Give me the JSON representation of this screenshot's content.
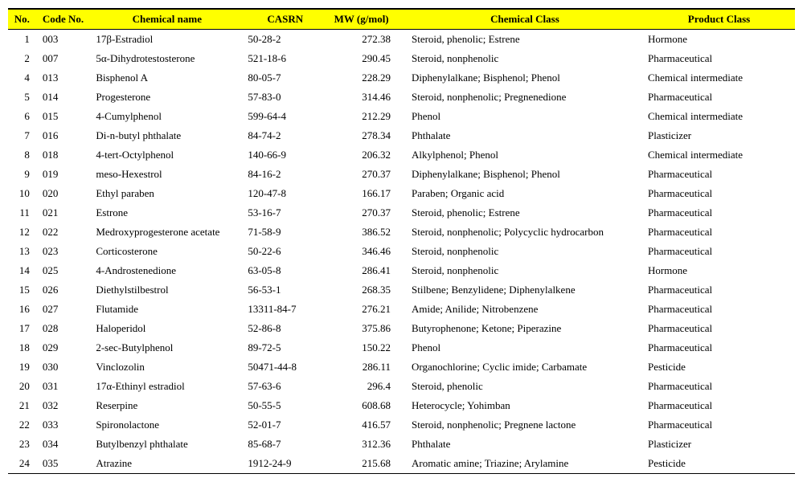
{
  "table": {
    "headers": {
      "no": "No.",
      "code": "Code No.",
      "name": "Chemical name",
      "casrn": "CASRN",
      "mw": "MW (g/mol)",
      "chemclass": "Chemical Class",
      "product": "Product Class"
    },
    "rows": [
      {
        "no": "1",
        "code": "003",
        "name": "17β-Estradiol",
        "casrn": "50-28-2",
        "mw": "272.38",
        "chemclass": "Steroid, phenolic; Estrene",
        "product": "Hormone"
      },
      {
        "no": "2",
        "code": "007",
        "name": "5α-Dihydrotestosterone",
        "casrn": "521-18-6",
        "mw": "290.45",
        "chemclass": "Steroid, nonphenolic",
        "product": "Pharmaceutical"
      },
      {
        "no": "4",
        "code": "013",
        "name": "Bisphenol A",
        "casrn": "80-05-7",
        "mw": "228.29",
        "chemclass": "Diphenylalkane; Bisphenol; Phenol",
        "product": "Chemical intermediate"
      },
      {
        "no": "5",
        "code": "014",
        "name": "Progesterone",
        "casrn": "57-83-0",
        "mw": "314.46",
        "chemclass": "Steroid, nonphenolic; Pregnenedione",
        "product": "Pharmaceutical"
      },
      {
        "no": "6",
        "code": "015",
        "name": "4-Cumylphenol",
        "casrn": "599-64-4",
        "mw": "212.29",
        "chemclass": "Phenol",
        "product": "Chemical intermediate"
      },
      {
        "no": "7",
        "code": "016",
        "name": "Di-n-butyl phthalate",
        "casrn": "84-74-2",
        "mw": "278.34",
        "chemclass": "Phthalate",
        "product": "Plasticizer"
      },
      {
        "no": "8",
        "code": "018",
        "name": "4-tert-Octylphenol",
        "casrn": "140-66-9",
        "mw": "206.32",
        "chemclass": "Alkylphenol; Phenol",
        "product": "Chemical intermediate"
      },
      {
        "no": "9",
        "code": "019",
        "name": "meso-Hexestrol",
        "casrn": "84-16-2",
        "mw": "270.37",
        "chemclass": "Diphenylalkane; Bisphenol; Phenol",
        "product": "Pharmaceutical"
      },
      {
        "no": "10",
        "code": "020",
        "name": "Ethyl paraben",
        "casrn": "120-47-8",
        "mw": "166.17",
        "chemclass": "Paraben; Organic acid",
        "product": "Pharmaceutical"
      },
      {
        "no": "11",
        "code": "021",
        "name": "Estrone",
        "casrn": "53-16-7",
        "mw": "270.37",
        "chemclass": "Steroid, phenolic; Estrene",
        "product": "Pharmaceutical"
      },
      {
        "no": "12",
        "code": "022",
        "name": "Medroxyprogesterone acetate",
        "casrn": "71-58-9",
        "mw": "386.52",
        "chemclass": "Steroid, nonphenolic; Polycyclic hydrocarbon",
        "product": "Pharmaceutical"
      },
      {
        "no": "13",
        "code": "023",
        "name": "Corticosterone",
        "casrn": "50-22-6",
        "mw": "346.46",
        "chemclass": "Steroid, nonphenolic",
        "product": "Pharmaceutical"
      },
      {
        "no": "14",
        "code": "025",
        "name": "4-Androstenedione",
        "casrn": "63-05-8",
        "mw": "286.41",
        "chemclass": "Steroid, nonphenolic",
        "product": "Hormone"
      },
      {
        "no": "15",
        "code": "026",
        "name": "Diethylstilbestrol",
        "casrn": "56-53-1",
        "mw": "268.35",
        "chemclass": "Stilbene; Benzylidene; Diphenylalkene",
        "product": "Pharmaceutical"
      },
      {
        "no": "16",
        "code": "027",
        "name": "Flutamide",
        "casrn": "13311-84-7",
        "mw": "276.21",
        "chemclass": "Amide; Anilide; Nitrobenzene",
        "product": "Pharmaceutical"
      },
      {
        "no": "17",
        "code": "028",
        "name": "Haloperidol",
        "casrn": "52-86-8",
        "mw": "375.86",
        "chemclass": "Butyrophenone; Ketone; Piperazine",
        "product": "Pharmaceutical"
      },
      {
        "no": "18",
        "code": "029",
        "name": "2-sec-Butylphenol",
        "casrn": "89-72-5",
        "mw": "150.22",
        "chemclass": "Phenol",
        "product": "Pharmaceutical"
      },
      {
        "no": "19",
        "code": "030",
        "name": "Vinclozolin",
        "casrn": "50471-44-8",
        "mw": "286.11",
        "chemclass": "Organochlorine; Cyclic imide; Carbamate",
        "product": "Pesticide"
      },
      {
        "no": "20",
        "code": "031",
        "name": "17α-Ethinyl estradiol",
        "casrn": "57-63-6",
        "mw": "296.4",
        "chemclass": "Steroid, phenolic",
        "product": "Pharmaceutical"
      },
      {
        "no": "21",
        "code": "032",
        "name": "Reserpine",
        "casrn": "50-55-5",
        "mw": "608.68",
        "chemclass": "Heterocycle; Yohimban",
        "product": "Pharmaceutical"
      },
      {
        "no": "22",
        "code": "033",
        "name": "Spironolactone",
        "casrn": "52-01-7",
        "mw": "416.57",
        "chemclass": "Steroid, nonphenolic; Pregnene lactone",
        "product": "Pharmaceutical"
      },
      {
        "no": "23",
        "code": "034",
        "name": "Butylbenzyl phthalate",
        "casrn": "85-68-7",
        "mw": "312.36",
        "chemclass": "Phthalate",
        "product": "Plasticizer"
      },
      {
        "no": "24",
        "code": "035",
        "name": "Atrazine",
        "casrn": "1912-24-9",
        "mw": "215.68",
        "chemclass": "Aromatic amine; Triazine; Arylamine",
        "product": "Pesticide"
      }
    ]
  }
}
